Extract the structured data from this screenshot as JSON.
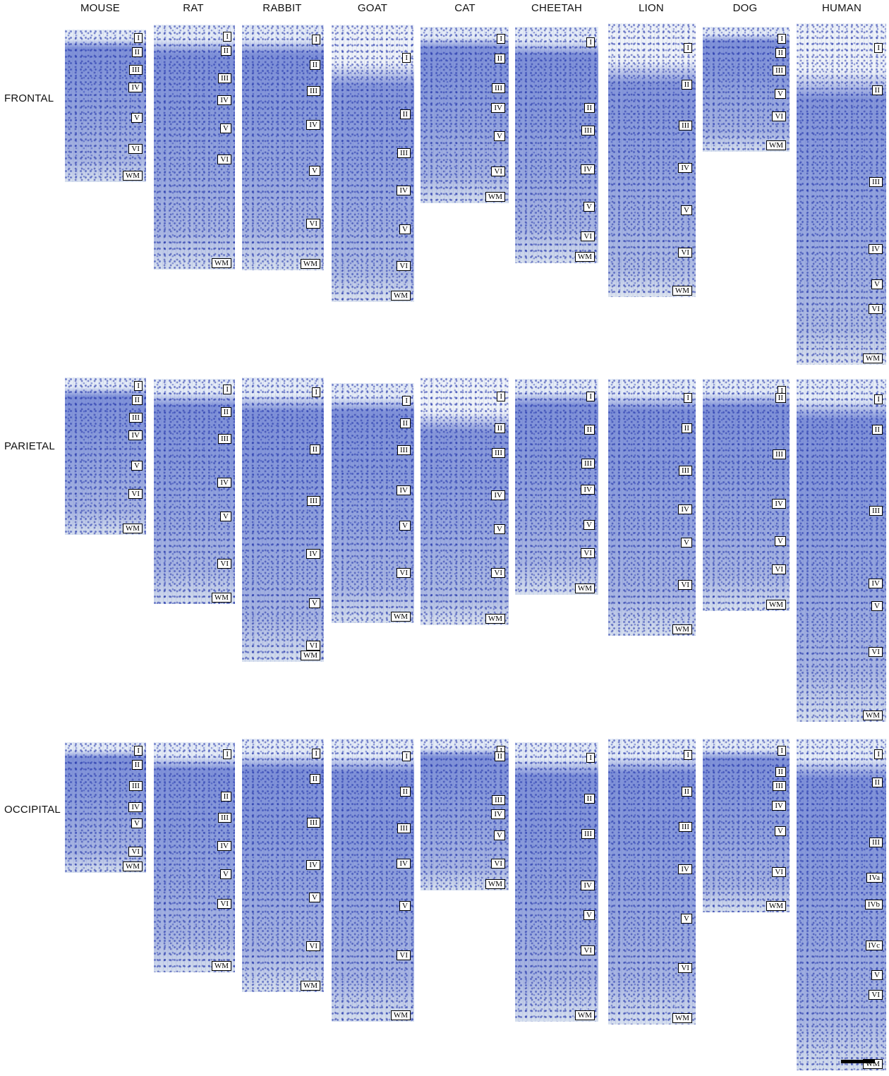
{
  "species": [
    "MOUSE",
    "RAT",
    "RABBIT",
    "GOAT",
    "CAT",
    "CHEETAH",
    "LION",
    "DOG",
    "HUMAN"
  ],
  "regions": [
    "FRONTAL",
    "PARIETAL",
    "OCCIPITAL"
  ],
  "stain": "Nissl (cresyl violet) cortical sections",
  "colors": {
    "stain_dark": "#2a3fb0",
    "stain_light": "#aab6e2",
    "pia": "#e4ebf6"
  },
  "scale_bar": true,
  "panels": [
    [
      [
        "I",
        "II",
        "III",
        "IV",
        "V",
        "VI",
        "WM"
      ],
      [
        "I",
        "II",
        "III",
        "IV",
        "V",
        "VI",
        "WM"
      ],
      [
        "I",
        "II",
        "III",
        "IV",
        "V",
        "VI",
        "WM"
      ],
      [
        "I",
        "II",
        "III",
        "IV",
        "V",
        "VI",
        "WM"
      ],
      [
        "I",
        "II",
        "III",
        "IV",
        "V",
        "VI",
        "WM"
      ],
      [
        "I",
        "II",
        "III",
        "IV",
        "V",
        "VI",
        "WM"
      ],
      [
        "I",
        "II",
        "III",
        "IV",
        "V",
        "VI",
        "WM"
      ],
      [
        "I",
        "II",
        "III",
        "V",
        "VI",
        "WM"
      ],
      [
        "I",
        "II",
        "III",
        "IV",
        "V",
        "VI",
        "WM"
      ]
    ],
    [
      [
        "I",
        "II",
        "III",
        "IV",
        "V",
        "VI",
        "WM"
      ],
      [
        "I",
        "II",
        "III",
        "IV",
        "V",
        "VI",
        "WM"
      ],
      [
        "I",
        "II",
        "III",
        "IV",
        "V",
        "VI",
        "WM"
      ],
      [
        "I",
        "II",
        "III",
        "IV",
        "V",
        "VI",
        "WM"
      ],
      [
        "I",
        "II",
        "III",
        "IV",
        "V",
        "VI",
        "WM"
      ],
      [
        "I",
        "II",
        "III",
        "IV",
        "V",
        "VI",
        "WM"
      ],
      [
        "I",
        "II",
        "III",
        "IV",
        "V",
        "VI",
        "WM"
      ],
      [
        "I",
        "II",
        "III",
        "IV",
        "V",
        "VI",
        "WM"
      ],
      [
        "I",
        "II",
        "III",
        "IV",
        "V",
        "VI",
        "WM"
      ]
    ],
    [
      [
        "I",
        "II",
        "III",
        "IV",
        "V",
        "VI",
        "WM"
      ],
      [
        "I",
        "II",
        "III",
        "IV",
        "V",
        "VI",
        "WM"
      ],
      [
        "I",
        "II",
        "III",
        "IV",
        "V",
        "VI",
        "WM"
      ],
      [
        "I",
        "II",
        "III",
        "IV",
        "V",
        "VI",
        "WM"
      ],
      [
        "I",
        "II",
        "III",
        "IV",
        "V",
        "VI",
        "WM"
      ],
      [
        "I",
        "II",
        "III",
        "IV",
        "V",
        "VI",
        "WM"
      ],
      [
        "I",
        "II",
        "III",
        "IV",
        "V",
        "VI",
        "WM"
      ],
      [
        "I",
        "II",
        "III",
        "IV",
        "V",
        "VI",
        "WM"
      ],
      [
        "I",
        "II",
        "III",
        "IVa",
        "IVb",
        "IVc",
        "V",
        "VI",
        "WM"
      ]
    ]
  ]
}
